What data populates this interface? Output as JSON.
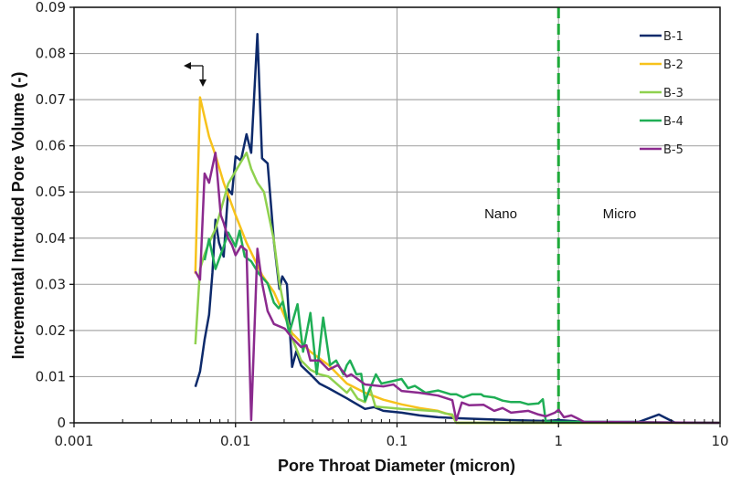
{
  "chart_data": {
    "type": "line",
    "title": "",
    "xlabel": "Pore Throat Diameter (micron)",
    "ylabel": "Incremental Intruded Pore Volume (-)",
    "xscale": "log",
    "xlim": [
      0.001,
      10
    ],
    "ylim": [
      0,
      0.09
    ],
    "x_ticks": [
      0.001,
      0.01,
      0.1,
      1,
      10
    ],
    "x_tick_labels": [
      "0.001",
      "0.01",
      "0.1",
      "1",
      "10"
    ],
    "y_ticks": [
      0,
      0.01,
      0.02,
      0.03,
      0.04,
      0.05,
      0.06,
      0.07,
      0.08,
      0.09
    ],
    "y_tick_labels": [
      "0",
      "0.01",
      "0.02",
      "0.03",
      "0.04",
      "0.05",
      "0.06",
      "0.07",
      "0.08",
      "0.09"
    ],
    "grid": true,
    "legend_position": "upper-right",
    "annotations": [
      {
        "text": "Nano",
        "x": 0.36,
        "y": 0.0455
      },
      {
        "text": "Micro",
        "x": 2.0,
        "y": 0.0455
      },
      {
        "type": "vline",
        "x": 1,
        "style": "dashed",
        "color": "#1faa3a",
        "label": "Nano/Micro boundary"
      },
      {
        "type": "arrow",
        "x": 0.0066,
        "y": 0.0775,
        "directions": [
          "left",
          "down"
        ]
      }
    ],
    "series": [
      {
        "name": "B-1",
        "color": "#0d2a6b",
        "points": [
          [
            0.00564,
            0.0078
          ],
          [
            0.00603,
            0.0111
          ],
          [
            0.00643,
            0.018
          ],
          [
            0.00686,
            0.0234
          ],
          [
            0.0072,
            0.0325
          ],
          [
            0.00751,
            0.044
          ],
          [
            0.0079,
            0.039
          ],
          [
            0.00845,
            0.036
          ],
          [
            0.00902,
            0.0506
          ],
          [
            0.00951,
            0.0495
          ],
          [
            0.01,
            0.0577
          ],
          [
            0.0108,
            0.0568
          ],
          [
            0.0117,
            0.0625
          ],
          [
            0.0125,
            0.0585
          ],
          [
            0.01367,
            0.0842
          ],
          [
            0.0146,
            0.0573
          ],
          [
            0.0158,
            0.0562
          ],
          [
            0.0173,
            0.0392
          ],
          [
            0.0187,
            0.029
          ],
          [
            0.0195,
            0.0317
          ],
          [
            0.0208,
            0.03
          ],
          [
            0.0224,
            0.0121
          ],
          [
            0.0238,
            0.0155
          ],
          [
            0.0255,
            0.0124
          ],
          [
            0.0291,
            0.0105
          ],
          [
            0.0331,
            0.0085
          ],
          [
            0.0377,
            0.0075
          ],
          [
            0.0489,
            0.0053
          ],
          [
            0.0634,
            0.003
          ],
          [
            0.0722,
            0.0034
          ],
          [
            0.0822,
            0.0026
          ],
          [
            0.1067,
            0.0022
          ],
          [
            0.138,
            0.0016
          ],
          [
            0.1795,
            0.0012
          ],
          [
            0.233,
            0.001
          ],
          [
            0.344,
            0.0008
          ],
          [
            0.508,
            0.0006
          ],
          [
            0.834,
            0.0004
          ],
          [
            1.0,
            0.0006
          ],
          [
            1.44,
            0.0002
          ],
          [
            3.14,
            0.0002
          ],
          [
            4.18,
            0.0018
          ],
          [
            5.28,
            0.0
          ],
          [
            9.87,
            0.0
          ]
        ]
      },
      {
        "name": "B-2",
        "color": "#f7c21b",
        "points": [
          [
            0.00564,
            0.0323
          ],
          [
            0.00603,
            0.0705
          ],
          [
            0.00686,
            0.062
          ],
          [
            0.00751,
            0.058
          ],
          [
            0.00845,
            0.052
          ],
          [
            0.01,
            0.045
          ],
          [
            0.0117,
            0.039
          ],
          [
            0.0146,
            0.032
          ],
          [
            0.0173,
            0.0283
          ],
          [
            0.0224,
            0.0194
          ],
          [
            0.0291,
            0.0154
          ],
          [
            0.0377,
            0.0125
          ],
          [
            0.0489,
            0.0085
          ],
          [
            0.0634,
            0.0065
          ],
          [
            0.0822,
            0.005
          ],
          [
            0.1067,
            0.004
          ],
          [
            0.138,
            0.0032
          ],
          [
            0.1795,
            0.0026
          ],
          [
            0.22,
            0.0016
          ],
          [
            0.233,
            0.0
          ],
          [
            9.87,
            0.0
          ]
        ]
      },
      {
        "name": "B-3",
        "color": "#8fd14f",
        "points": [
          [
            0.00564,
            0.017
          ],
          [
            0.00603,
            0.0333
          ],
          [
            0.00643,
            0.0365
          ],
          [
            0.00686,
            0.039
          ],
          [
            0.00751,
            0.042
          ],
          [
            0.0081,
            0.046
          ],
          [
            0.00902,
            0.0518
          ],
          [
            0.01,
            0.0545
          ],
          [
            0.0108,
            0.0565
          ],
          [
            0.0117,
            0.0585
          ],
          [
            0.0125,
            0.055
          ],
          [
            0.01367,
            0.052
          ],
          [
            0.015,
            0.05
          ],
          [
            0.0173,
            0.0395
          ],
          [
            0.0187,
            0.0303
          ],
          [
            0.0202,
            0.0243
          ],
          [
            0.0224,
            0.0183
          ],
          [
            0.0255,
            0.0135
          ],
          [
            0.0291,
            0.0115
          ],
          [
            0.0331,
            0.0105
          ],
          [
            0.0377,
            0.01
          ],
          [
            0.0489,
            0.0065
          ],
          [
            0.0515,
            0.0075
          ],
          [
            0.057,
            0.0052
          ],
          [
            0.0634,
            0.0045
          ],
          [
            0.068,
            0.0075
          ],
          [
            0.0735,
            0.0035
          ],
          [
            0.1067,
            0.003
          ],
          [
            0.1795,
            0.0025
          ],
          [
            0.2,
            0.002
          ],
          [
            0.22,
            0.0018
          ],
          [
            0.233,
            0.0
          ],
          [
            9.87,
            0.0
          ]
        ]
      },
      {
        "name": "B-4",
        "color": "#1fae55",
        "points": [
          [
            0.00643,
            0.0352
          ],
          [
            0.00686,
            0.0398
          ],
          [
            0.00751,
            0.0333
          ],
          [
            0.00845,
            0.0382
          ],
          [
            0.00902,
            0.0412
          ],
          [
            0.01,
            0.0382
          ],
          [
            0.0106,
            0.0416
          ],
          [
            0.0114,
            0.036
          ],
          [
            0.0125,
            0.035
          ],
          [
            0.014,
            0.0322
          ],
          [
            0.0158,
            0.0302
          ],
          [
            0.0173,
            0.026
          ],
          [
            0.0185,
            0.0248
          ],
          [
            0.0196,
            0.0262
          ],
          [
            0.0215,
            0.0194
          ],
          [
            0.0242,
            0.0257
          ],
          [
            0.0262,
            0.0154
          ],
          [
            0.0291,
            0.0238
          ],
          [
            0.0318,
            0.0105
          ],
          [
            0.0349,
            0.0228
          ],
          [
            0.0385,
            0.0125
          ],
          [
            0.042,
            0.0135
          ],
          [
            0.0466,
            0.0105
          ],
          [
            0.0489,
            0.0125
          ],
          [
            0.0512,
            0.0135
          ],
          [
            0.056,
            0.0105
          ],
          [
            0.06,
            0.0106
          ],
          [
            0.0634,
            0.0048
          ],
          [
            0.074,
            0.0105
          ],
          [
            0.08,
            0.0085
          ],
          [
            0.093,
            0.009
          ],
          [
            0.1067,
            0.0095
          ],
          [
            0.117,
            0.0075
          ],
          [
            0.129,
            0.008
          ],
          [
            0.15,
            0.0065
          ],
          [
            0.1795,
            0.007
          ],
          [
            0.214,
            0.0062
          ],
          [
            0.233,
            0.0062
          ],
          [
            0.257,
            0.0055
          ],
          [
            0.292,
            0.0062
          ],
          [
            0.331,
            0.0062
          ],
          [
            0.344,
            0.0058
          ],
          [
            0.4,
            0.0055
          ],
          [
            0.45,
            0.0048
          ],
          [
            0.508,
            0.0045
          ],
          [
            0.58,
            0.0045
          ],
          [
            0.65,
            0.004
          ],
          [
            0.751,
            0.0042
          ],
          [
            0.8,
            0.0051
          ],
          [
            0.834,
            0.0003
          ],
          [
            1.0,
            0.0002
          ],
          [
            1.44,
            0.0002
          ],
          [
            9.87,
            0.0
          ]
        ]
      },
      {
        "name": "B-5",
        "color": "#8b2a8e",
        "points": [
          [
            0.00564,
            0.0328
          ],
          [
            0.00603,
            0.031
          ],
          [
            0.00643,
            0.054
          ],
          [
            0.00686,
            0.052
          ],
          [
            0.00751,
            0.0585
          ],
          [
            0.0081,
            0.045
          ],
          [
            0.00845,
            0.0433
          ],
          [
            0.00902,
            0.0399
          ],
          [
            0.00951,
            0.0385
          ],
          [
            0.01,
            0.0363
          ],
          [
            0.0108,
            0.0383
          ],
          [
            0.0117,
            0.0373
          ],
          [
            0.0125,
            0.0006
          ],
          [
            0.01367,
            0.0377
          ],
          [
            0.0146,
            0.0303
          ],
          [
            0.0158,
            0.0242
          ],
          [
            0.0173,
            0.0214
          ],
          [
            0.0202,
            0.0204
          ],
          [
            0.0224,
            0.0184
          ],
          [
            0.0255,
            0.0164
          ],
          [
            0.0275,
            0.0168
          ],
          [
            0.0291,
            0.0135
          ],
          [
            0.0331,
            0.0135
          ],
          [
            0.0377,
            0.0115
          ],
          [
            0.043,
            0.0125
          ],
          [
            0.0489,
            0.01
          ],
          [
            0.052,
            0.0105
          ],
          [
            0.0634,
            0.0083
          ],
          [
            0.0822,
            0.0079
          ],
          [
            0.095,
            0.0083
          ],
          [
            0.1067,
            0.0069
          ],
          [
            0.138,
            0.0065
          ],
          [
            0.1795,
            0.0059
          ],
          [
            0.22,
            0.0049
          ],
          [
            0.233,
            0.0006
          ],
          [
            0.252,
            0.0044
          ],
          [
            0.28,
            0.0038
          ],
          [
            0.344,
            0.0039
          ],
          [
            0.4,
            0.0026
          ],
          [
            0.45,
            0.0032
          ],
          [
            0.508,
            0.0022
          ],
          [
            0.65,
            0.0026
          ],
          [
            0.751,
            0.0018
          ],
          [
            0.834,
            0.0014
          ],
          [
            0.95,
            0.0022
          ],
          [
            1.0,
            0.0028
          ],
          [
            1.08,
            0.0012
          ],
          [
            1.2,
            0.0016
          ],
          [
            1.3,
            0.001
          ],
          [
            1.44,
            0.0002
          ],
          [
            9.87,
            0.0
          ]
        ]
      }
    ]
  },
  "legend": {
    "items": [
      {
        "label": "B-1",
        "color": "#0d2a6b"
      },
      {
        "label": "B-2",
        "color": "#f7c21b"
      },
      {
        "label": "B-3",
        "color": "#8fd14f"
      },
      {
        "label": "B-4",
        "color": "#1fae55"
      },
      {
        "label": "B-5",
        "color": "#8b2a8e"
      }
    ]
  },
  "colors": {
    "grid": "#a9a9a9",
    "axis": "#111111",
    "boundary_line": "#1faa3a"
  }
}
